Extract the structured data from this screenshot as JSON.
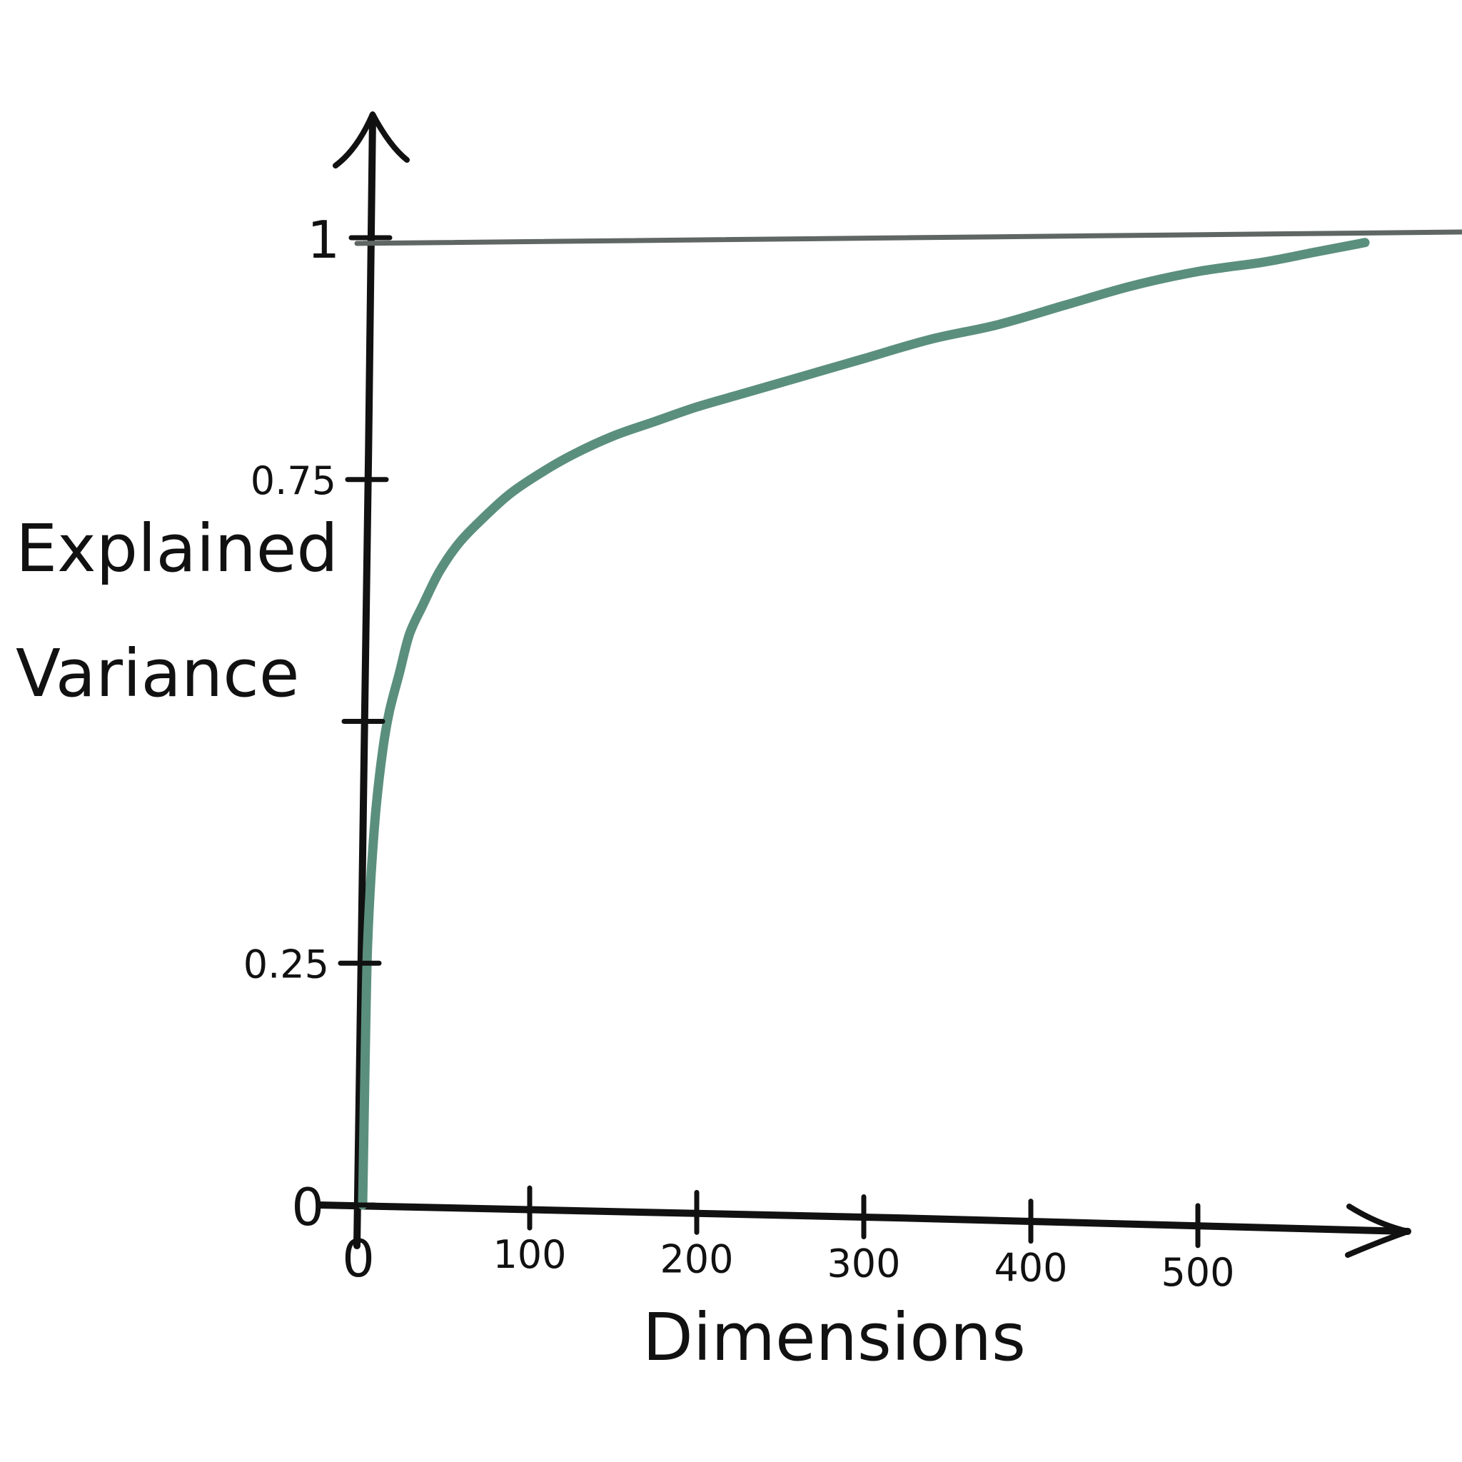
{
  "chart_data": {
    "type": "line",
    "title": "",
    "xlabel": "Dimensions",
    "ylabel": "Explained Variance",
    "ylabel_lines": [
      "Explained",
      "Variance"
    ],
    "xlim": [
      0,
      600
    ],
    "ylim": [
      0,
      1
    ],
    "x_ticks": [
      {
        "value": 0,
        "label": "0"
      },
      {
        "value": 100,
        "label": "100"
      },
      {
        "value": 200,
        "label": "200"
      },
      {
        "value": 300,
        "label": "300"
      },
      {
        "value": 400,
        "label": "400"
      },
      {
        "value": 500,
        "label": "500"
      }
    ],
    "y_ticks": [
      {
        "value": 0,
        "label": "0"
      },
      {
        "value": 0.25,
        "label": "0.25"
      },
      {
        "value": 0.5,
        "label": ""
      },
      {
        "value": 0.75,
        "label": "0.75"
      },
      {
        "value": 1,
        "label": "1"
      }
    ],
    "grid": false,
    "legend": "none",
    "colors": {
      "curve": "#5b8f7d",
      "reference_line": "#5f6663",
      "ink": "#111111"
    },
    "reference_line": {
      "y": 1
    },
    "series": [
      {
        "x": [
          0,
          1,
          2,
          3,
          5,
          8,
          12,
          16,
          22,
          28,
          36,
          46,
          58,
          72,
          88,
          105,
          125,
          150,
          175,
          200,
          230,
          260,
          300,
          340,
          380,
          420,
          460,
          500,
          540,
          570,
          600
        ],
        "y": [
          0.0,
          0.1,
          0.2,
          0.27,
          0.34,
          0.41,
          0.47,
          0.51,
          0.55,
          0.59,
          0.62,
          0.655,
          0.685,
          0.71,
          0.735,
          0.755,
          0.775,
          0.795,
          0.81,
          0.825,
          0.84,
          0.855,
          0.875,
          0.895,
          0.91,
          0.93,
          0.95,
          0.965,
          0.975,
          0.985,
          0.995
        ]
      }
    ]
  }
}
